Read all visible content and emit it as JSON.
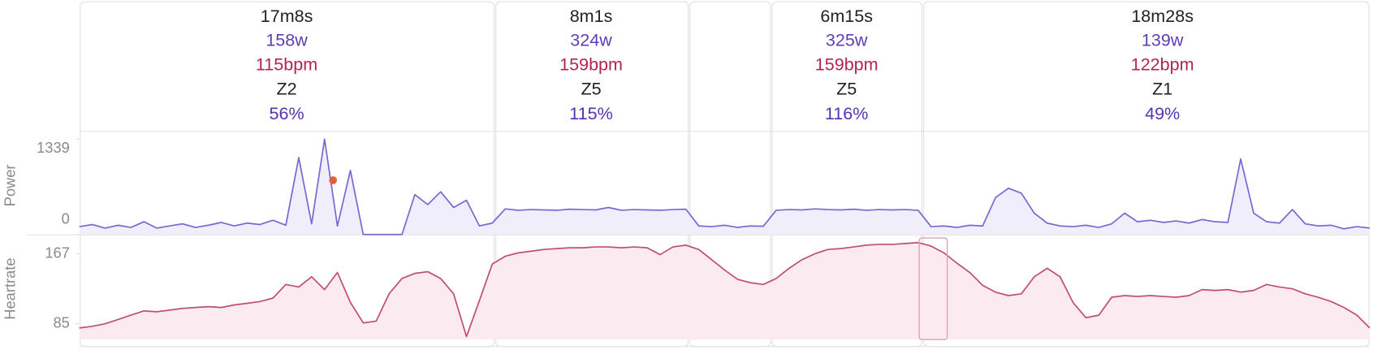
{
  "intervals": [
    {
      "duration": "17m8s",
      "power": "158w",
      "heartrate": "115bpm",
      "zone": "Z2",
      "percent": "56%"
    },
    {
      "duration": "8m1s",
      "power": "324w",
      "heartrate": "159bpm",
      "zone": "Z5",
      "percent": "115%"
    },
    {
      "duration": "6m15s",
      "power": "325w",
      "heartrate": "159bpm",
      "zone": "Z5",
      "percent": "116%"
    },
    {
      "duration": "18m28s",
      "power": "139w",
      "heartrate": "122bpm",
      "zone": "Z1",
      "percent": "49%"
    }
  ],
  "charts": [
    {
      "type": "line",
      "label": "Power",
      "color": "#7b68d0",
      "fill": "#f1eefb",
      "ylim": [
        0,
        1450
      ],
      "yticks": [
        0,
        1339
      ],
      "values": [
        110,
        140,
        90,
        130,
        100,
        180,
        90,
        120,
        150,
        100,
        130,
        170,
        120,
        160,
        140,
        200,
        130,
        1080,
        150,
        1339,
        120,
        900,
        0,
        0,
        0,
        0,
        560,
        420,
        600,
        380,
        480,
        120,
        160,
        360,
        340,
        350,
        345,
        340,
        355,
        350,
        345,
        380,
        340,
        350,
        345,
        340,
        350,
        355,
        120,
        110,
        130,
        100,
        120,
        115,
        340,
        350,
        345,
        360,
        350,
        345,
        355,
        340,
        350,
        345,
        350,
        340,
        110,
        120,
        100,
        130,
        120,
        520,
        650,
        580,
        300,
        160,
        120,
        110,
        130,
        100,
        150,
        300,
        180,
        200,
        170,
        190,
        160,
        210,
        180,
        170,
        1060,
        300,
        180,
        160,
        350,
        150,
        120,
        130,
        80,
        110,
        90
      ]
    },
    {
      "type": "line",
      "label": "Heartrate",
      "color": "#c0506e",
      "fill": "#fbeaef",
      "ylim": [
        66.5,
        187.5
      ],
      "yticks": [
        85,
        167
      ],
      "values": [
        80,
        82,
        85,
        90,
        95,
        100,
        99,
        101,
        103,
        104,
        105,
        104,
        107,
        109,
        111,
        115,
        131,
        128,
        140,
        125,
        145,
        110,
        86,
        88,
        120,
        138,
        144,
        146,
        138,
        120,
        70,
        112,
        155,
        164,
        168,
        170,
        172,
        173,
        174,
        174,
        175,
        175,
        174,
        175,
        174,
        166,
        175,
        177,
        172,
        160,
        148,
        137,
        133,
        131,
        138,
        150,
        160,
        167,
        172,
        173,
        175,
        177,
        178,
        178,
        179,
        180,
        176,
        168,
        156,
        145,
        130,
        122,
        118,
        120,
        140,
        150,
        140,
        110,
        92,
        95,
        116,
        118,
        117,
        118,
        117,
        116,
        118,
        125,
        124,
        125,
        122,
        124,
        131,
        128,
        126,
        120,
        116,
        111,
        104,
        95,
        80
      ]
    }
  ]
}
